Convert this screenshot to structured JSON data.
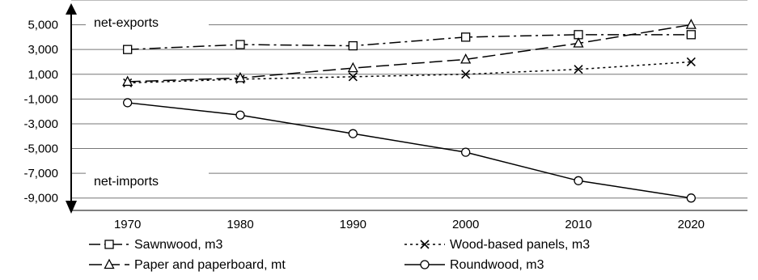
{
  "chart_data": {
    "type": "line",
    "x": [
      "1970",
      "1980",
      "1990",
      "2000",
      "2010",
      "2020"
    ],
    "y_ticks": [
      "5,000",
      "3,000",
      "1,000",
      "-1,000",
      "-3,000",
      "-5,000",
      "-7,000",
      "-9,000"
    ],
    "ylim": [
      -10000,
      7000
    ],
    "grid": true,
    "legend_position": "bottom",
    "annotations": {
      "top": "net-exports",
      "bottom": "net-imports"
    },
    "series": [
      {
        "name": "Sawnwood, m3",
        "marker": "square",
        "dash": "dash-dot",
        "color": "#000000",
        "values": [
          3000,
          3400,
          3300,
          4000,
          4200,
          4200
        ]
      },
      {
        "name": "Wood-based panels, m3",
        "marker": "x",
        "dash": "dotted",
        "color": "#000000",
        "values": [
          300,
          600,
          800,
          1000,
          1400,
          2000
        ]
      },
      {
        "name": "Paper and paperboard, mt",
        "marker": "triangle",
        "dash": "long-dash",
        "color": "#000000",
        "values": [
          400,
          700,
          1500,
          2200,
          3500,
          5000
        ]
      },
      {
        "name": "Roundwood, m3",
        "marker": "circle",
        "dash": "solid",
        "color": "#000000",
        "values": [
          -1300,
          -2300,
          -3800,
          -5300,
          -7600,
          -9000
        ]
      }
    ]
  }
}
